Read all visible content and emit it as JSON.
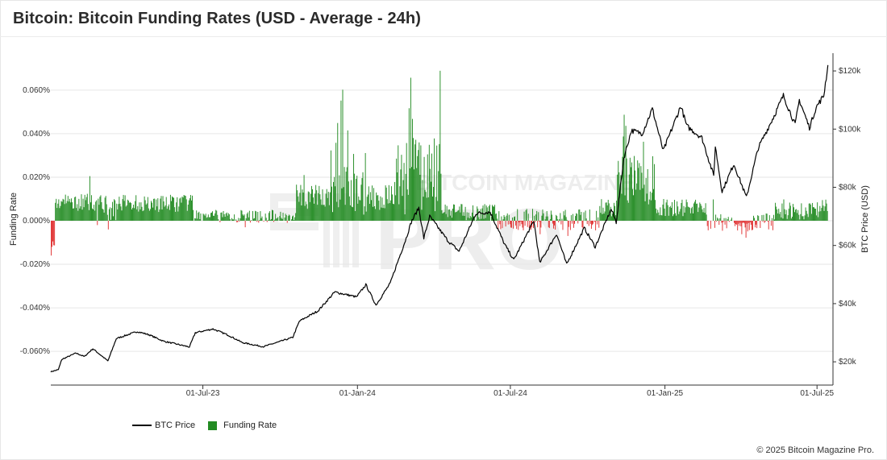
{
  "title": "Bitcoin: Bitcoin Funding Rates (USD - Average - 24h)",
  "copyright": "© 2025 Bitcoin Magazine Pro.",
  "legend": {
    "btc_price": "BTC Price",
    "funding_rate": "Funding Rate"
  },
  "colors": {
    "price_line": "#000000",
    "positive": "#228b22",
    "negative": "#e03030",
    "grid": "#e6e6e6"
  },
  "chart_data": {
    "type": "bar",
    "x_range": [
      "2023-01-01",
      "2025-07-20"
    ],
    "x_ticks": [
      {
        "date": "2023-07-01",
        "label": "01-Jul-23"
      },
      {
        "date": "2024-01-01",
        "label": "01-Jan-24"
      },
      {
        "date": "2024-07-01",
        "label": "01-Jul-24"
      },
      {
        "date": "2025-01-01",
        "label": "01-Jan-25"
      },
      {
        "date": "2025-07-01",
        "label": "01-Jul-25"
      }
    ],
    "y_left": {
      "label": "Funding Rate",
      "unit": "%",
      "range": [
        -0.0755,
        0.0755
      ],
      "ticks": [
        {
          "v": 0.06,
          "label": "0.060%"
        },
        {
          "v": 0.04,
          "label": "0.040%"
        },
        {
          "v": 0.02,
          "label": "0.020%"
        },
        {
          "v": 0,
          "label": "0.000%"
        },
        {
          "v": -0.02,
          "label": "-0.020%"
        },
        {
          "v": -0.04,
          "label": "-0.040%"
        },
        {
          "v": -0.06,
          "label": "-0.060%"
        }
      ]
    },
    "y_right": {
      "label": "BTC Price (USD)",
      "range": [
        12000,
        125000
      ],
      "ticks": [
        {
          "v": 120000,
          "label": "$120k"
        },
        {
          "v": 100000,
          "label": "$100k"
        },
        {
          "v": 80000,
          "label": "$80k"
        },
        {
          "v": 60000,
          "label": "$60k"
        },
        {
          "v": 40000,
          "label": "$40k"
        },
        {
          "v": 20000,
          "label": "$20k"
        }
      ]
    },
    "series": [
      {
        "name": "BTC Price",
        "type": "line",
        "points": [
          [
            "2023-01-01",
            16600
          ],
          [
            "2023-01-10",
            17300
          ],
          [
            "2023-01-14",
            20800
          ],
          [
            "2023-01-31",
            23000
          ],
          [
            "2023-02-10",
            21800
          ],
          [
            "2023-02-20",
            24500
          ],
          [
            "2023-03-10",
            20300
          ],
          [
            "2023-03-20",
            28000
          ],
          [
            "2023-04-14",
            30400
          ],
          [
            "2023-04-28",
            29300
          ],
          [
            "2023-05-15",
            27100
          ],
          [
            "2023-06-15",
            25100
          ],
          [
            "2023-06-22",
            30000
          ],
          [
            "2023-07-13",
            31300
          ],
          [
            "2023-07-31",
            29200
          ],
          [
            "2023-08-17",
            26600
          ],
          [
            "2023-09-11",
            25200
          ],
          [
            "2023-10-01",
            27000
          ],
          [
            "2023-10-16",
            28400
          ],
          [
            "2023-10-24",
            34000
          ],
          [
            "2023-11-15",
            37500
          ],
          [
            "2023-12-05",
            44000
          ],
          [
            "2023-12-31",
            42300
          ],
          [
            "2024-01-11",
            46500
          ],
          [
            "2024-01-23",
            39500
          ],
          [
            "2024-02-09",
            47000
          ],
          [
            "2024-02-15",
            52000
          ],
          [
            "2024-02-28",
            62500
          ],
          [
            "2024-03-05",
            68000
          ],
          [
            "2024-03-14",
            73000
          ],
          [
            "2024-03-20",
            62500
          ],
          [
            "2024-03-27",
            70000
          ],
          [
            "2024-04-18",
            61500
          ],
          [
            "2024-05-01",
            58000
          ],
          [
            "2024-05-21",
            71000
          ],
          [
            "2024-06-07",
            71500
          ],
          [
            "2024-06-24",
            60500
          ],
          [
            "2024-07-05",
            55000
          ],
          [
            "2024-07-29",
            68500
          ],
          [
            "2024-08-05",
            54000
          ],
          [
            "2024-08-25",
            64000
          ],
          [
            "2024-09-06",
            53500
          ],
          [
            "2024-09-27",
            66000
          ],
          [
            "2024-10-10",
            59500
          ],
          [
            "2024-10-29",
            72500
          ],
          [
            "2024-11-04",
            68000
          ],
          [
            "2024-11-13",
            90000
          ],
          [
            "2024-11-22",
            99500
          ],
          [
            "2024-12-05",
            98500
          ],
          [
            "2024-12-17",
            107000
          ],
          [
            "2024-12-30",
            92500
          ],
          [
            "2025-01-20",
            108000
          ],
          [
            "2025-01-27",
            101000
          ],
          [
            "2025-02-14",
            97000
          ],
          [
            "2025-02-28",
            84000
          ],
          [
            "2025-03-02",
            94000
          ],
          [
            "2025-03-10",
            78500
          ],
          [
            "2025-03-24",
            88000
          ],
          [
            "2025-04-08",
            76500
          ],
          [
            "2025-04-22",
            93500
          ],
          [
            "2025-05-10",
            104000
          ],
          [
            "2025-05-22",
            111500
          ],
          [
            "2025-06-05",
            101500
          ],
          [
            "2025-06-10",
            110000
          ],
          [
            "2025-06-22",
            100500
          ],
          [
            "2025-06-30",
            107500
          ],
          [
            "2025-07-09",
            111500
          ],
          [
            "2025-07-14",
            122000
          ]
        ]
      },
      {
        "name": "Funding Rate",
        "type": "bar",
        "segments": [
          {
            "from": "2023-01-01",
            "to": "2023-01-06",
            "base": -0.012,
            "amp": 0.004
          },
          {
            "from": "2023-01-06",
            "to": "2023-03-05",
            "base": 0.0085,
            "amp": 0.004
          },
          {
            "from": "2023-03-05",
            "to": "2023-03-20",
            "base": 0.0055,
            "amp": 0.006
          },
          {
            "from": "2023-03-20",
            "to": "2023-06-20",
            "base": 0.008,
            "amp": 0.004
          },
          {
            "from": "2023-06-20",
            "to": "2023-10-20",
            "base": 0.002,
            "amp": 0.003
          },
          {
            "from": "2023-10-20",
            "to": "2023-12-01",
            "base": 0.011,
            "amp": 0.006
          },
          {
            "from": "2023-12-01",
            "to": "2024-01-15",
            "base": 0.014,
            "amp": 0.012
          },
          {
            "from": "2024-01-15",
            "to": "2024-02-15",
            "base": 0.011,
            "amp": 0.006
          },
          {
            "from": "2024-02-15",
            "to": "2024-04-10",
            "base": 0.02,
            "amp": 0.018
          },
          {
            "from": "2024-04-10",
            "to": "2024-06-15",
            "base": 0.004,
            "amp": 0.004
          },
          {
            "from": "2024-06-15",
            "to": "2024-10-15",
            "base": 0.0005,
            "amp": 0.005
          },
          {
            "from": "2024-10-15",
            "to": "2024-11-05",
            "base": 0.006,
            "amp": 0.004
          },
          {
            "from": "2024-11-05",
            "to": "2024-12-20",
            "base": 0.018,
            "amp": 0.012
          },
          {
            "from": "2024-12-20",
            "to": "2025-02-20",
            "base": 0.006,
            "amp": 0.004
          },
          {
            "from": "2025-02-20",
            "to": "2025-05-10",
            "base": -0.0005,
            "amp": 0.004
          },
          {
            "from": "2025-05-10",
            "to": "2025-07-05",
            "base": 0.0045,
            "amp": 0.004
          },
          {
            "from": "2025-07-05",
            "to": "2025-07-14",
            "base": 0.007,
            "amp": 0.003
          }
        ],
        "spikes": [
          [
            "2023-01-02",
            -0.012
          ],
          [
            "2023-01-03",
            -0.0095
          ],
          [
            "2023-02-16",
            0.0205
          ],
          [
            "2023-02-25",
            -0.002
          ],
          [
            "2023-03-10",
            -0.004
          ],
          [
            "2023-08-20",
            -0.003
          ],
          [
            "2023-10-29",
            0.021
          ],
          [
            "2023-11-30",
            0.0323
          ],
          [
            "2023-12-06",
            0.0358
          ],
          [
            "2023-12-08",
            0.0449
          ],
          [
            "2023-12-12",
            0.0552
          ],
          [
            "2023-12-14",
            0.0602
          ],
          [
            "2023-12-20",
            0.0415
          ],
          [
            "2023-12-27",
            0.0307
          ],
          [
            "2024-01-10",
            0.0311
          ],
          [
            "2024-02-14",
            0.0178
          ],
          [
            "2024-02-27",
            0.0215
          ],
          [
            "2024-02-28",
            0.0357
          ],
          [
            "2024-03-02",
            0.0517
          ],
          [
            "2024-03-04",
            0.0657
          ],
          [
            "2024-03-06",
            0.0468
          ],
          [
            "2024-03-07",
            0.038
          ],
          [
            "2024-03-09",
            0.0351
          ],
          [
            "2024-03-11",
            0.0242
          ],
          [
            "2024-03-13",
            0.0325
          ],
          [
            "2024-03-15",
            0.0211
          ],
          [
            "2024-03-24",
            0.0305
          ],
          [
            "2024-04-01",
            0.0378
          ],
          [
            "2024-04-06",
            0.0228
          ],
          [
            "2024-04-08",
            0.0689
          ],
          [
            "2024-06-10",
            0.0066
          ],
          [
            "2024-08-05",
            -0.0062
          ],
          [
            "2024-09-07",
            -0.007
          ],
          [
            "2024-11-12",
            0.0387
          ],
          [
            "2024-11-13",
            0.0487
          ],
          [
            "2024-11-15",
            0.0436
          ],
          [
            "2024-11-22",
            0.0268
          ],
          [
            "2024-12-01",
            0.0265
          ],
          [
            "2024-12-06",
            0.0363
          ],
          [
            "2024-12-11",
            0.0237
          ],
          [
            "2025-02-27",
            0.0098
          ],
          [
            "2025-03-10",
            -0.0046
          ],
          [
            "2025-04-02",
            -0.0062
          ],
          [
            "2025-04-07",
            -0.0078
          ],
          [
            "2025-04-09",
            -0.0049
          ],
          [
            "2025-05-22",
            0.0098
          ],
          [
            "2025-06-05",
            0.0051
          ],
          [
            "2025-07-11",
            0.0097
          ]
        ]
      }
    ],
    "watermark": "BITCOIN MAGAZINE PRO"
  }
}
